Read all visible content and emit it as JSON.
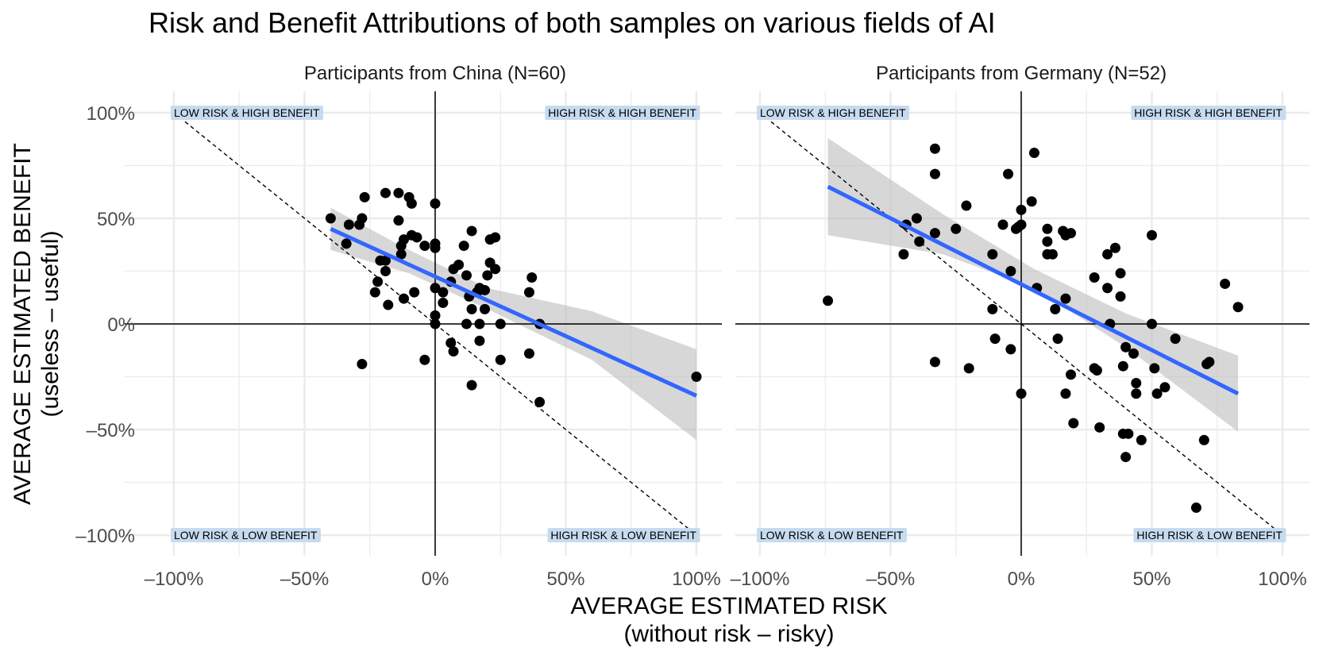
{
  "chart_data": {
    "type": "scatter",
    "title": "Risk and Benefit Attributions of both samples on various fields of AI",
    "xlabel": "AVERAGE ESTIMATED RISK",
    "xlabel_sub": "(without risk – risky)",
    "ylabel": "AVERAGE ESTIMATED BENEFIT",
    "ylabel_sub": "(useless – useful)",
    "xlim": [
      -1.1,
      1.1
    ],
    "ylim": [
      -1.1,
      1.1
    ],
    "x_ticks": [
      -1,
      -0.5,
      0,
      0.5,
      1
    ],
    "x_tick_labels": [
      "–100%",
      "–50%",
      "0%",
      "50%",
      "100%"
    ],
    "y_ticks": [
      1,
      0.5,
      0,
      -0.5,
      -1
    ],
    "y_tick_labels": [
      "100%",
      "50%",
      "0%",
      "–50%",
      "–100%"
    ],
    "grid": true,
    "colors": {
      "points": "#000000",
      "fit_line": "#3366ff",
      "ribbon": "#bdbdbd",
      "label_fill": "#c6dbef",
      "grid": "#ebebeb"
    },
    "quadrant_labels": {
      "top_left": "LOW RISK & HIGH BENEFIT",
      "top_right": "HIGH RISK & HIGH BENEFIT",
      "bottom_left": "LOW RISK & LOW BENEFIT",
      "bottom_right": "HIGH RISK & LOW BENEFIT"
    },
    "panels": [
      {
        "name": "Participants from China (N=60)",
        "points": [
          [
            -0.4,
            0.5
          ],
          [
            -0.33,
            0.47
          ],
          [
            -0.29,
            0.47
          ],
          [
            -0.28,
            0.5
          ],
          [
            -0.34,
            0.38
          ],
          [
            -0.28,
            -0.19
          ],
          [
            -0.27,
            0.6
          ],
          [
            -0.23,
            0.15
          ],
          [
            -0.22,
            0.2
          ],
          [
            -0.21,
            0.3
          ],
          [
            -0.19,
            0.3
          ],
          [
            -0.19,
            0.25
          ],
          [
            -0.18,
            0.09
          ],
          [
            -0.19,
            0.62
          ],
          [
            -0.14,
            0.62
          ],
          [
            -0.14,
            0.49
          ],
          [
            -0.13,
            0.37
          ],
          [
            -0.13,
            0.33
          ],
          [
            -0.12,
            0.4
          ],
          [
            -0.12,
            0.12
          ],
          [
            -0.1,
            0.6
          ],
          [
            -0.09,
            0.57
          ],
          [
            -0.09,
            0.42
          ],
          [
            -0.07,
            0.41
          ],
          [
            -0.08,
            0.15
          ],
          [
            -0.04,
            0.37
          ],
          [
            -0.04,
            -0.17
          ],
          [
            0,
            0.57
          ],
          [
            0,
            0.38
          ],
          [
            0,
            0.36
          ],
          [
            0,
            0.17
          ],
          [
            0,
            0.04
          ],
          [
            0,
            0
          ],
          [
            0.03,
            0.15
          ],
          [
            0.03,
            0.1
          ],
          [
            0.06,
            0.2
          ],
          [
            0.07,
            0.26
          ],
          [
            0.09,
            0.28
          ],
          [
            0.06,
            -0.09
          ],
          [
            0.07,
            -0.13
          ],
          [
            0.11,
            0.37
          ],
          [
            0.12,
            0.23
          ],
          [
            0.12,
            0
          ],
          [
            0.13,
            0.13
          ],
          [
            0.14,
            0.44
          ],
          [
            0.14,
            0.07
          ],
          [
            0.14,
            -0.29
          ],
          [
            0.16,
            0.15
          ],
          [
            0.17,
            0.17
          ],
          [
            0.17,
            0
          ],
          [
            0.17,
            -0.08
          ],
          [
            0.19,
            0.07
          ],
          [
            0.19,
            0.16
          ],
          [
            0.2,
            0.23
          ],
          [
            0.21,
            0.29
          ],
          [
            0.21,
            0.4
          ],
          [
            0.23,
            0.41
          ],
          [
            0.23,
            0.26
          ],
          [
            0.25,
            0
          ],
          [
            0.25,
            -0.17
          ],
          [
            0.36,
            0.15
          ],
          [
            0.37,
            0.22
          ],
          [
            0.36,
            -0.14
          ],
          [
            0.4,
            0
          ],
          [
            0.4,
            -0.37
          ],
          [
            1,
            -0.25
          ]
        ],
        "fit": {
          "x": [
            -0.4,
            1.0
          ],
          "y": [
            0.45,
            -0.34
          ]
        },
        "ribbon": {
          "x": [
            -0.4,
            -0.1,
            0.2,
            0.6,
            1.0
          ],
          "upper": [
            0.55,
            0.35,
            0.17,
            0.06,
            -0.12
          ],
          "lower": [
            0.35,
            0.24,
            0.07,
            -0.17,
            -0.55
          ]
        }
      },
      {
        "name": "Participants from Germany (N=52)",
        "points": [
          [
            -0.74,
            0.11
          ],
          [
            -0.45,
            0.33
          ],
          [
            -0.44,
            0.47
          ],
          [
            -0.4,
            0.5
          ],
          [
            -0.39,
            0.39
          ],
          [
            -0.33,
            0.83
          ],
          [
            -0.33,
            0.71
          ],
          [
            -0.33,
            0.43
          ],
          [
            -0.33,
            -0.18
          ],
          [
            -0.25,
            0.45
          ],
          [
            -0.21,
            0.56
          ],
          [
            -0.2,
            -0.21
          ],
          [
            -0.11,
            0.33
          ],
          [
            -0.11,
            0.07
          ],
          [
            -0.1,
            -0.07
          ],
          [
            -0.07,
            0.47
          ],
          [
            -0.05,
            0.71
          ],
          [
            -0.04,
            0.25
          ],
          [
            -0.04,
            -0.12
          ],
          [
            -0.02,
            0.45
          ],
          [
            -0.01,
            0.46
          ],
          [
            0,
            0.54
          ],
          [
            0,
            0.47
          ],
          [
            0,
            -0.33
          ],
          [
            0.04,
            0.58
          ],
          [
            0.05,
            0.81
          ],
          [
            0.06,
            0.17
          ],
          [
            0.1,
            0.33
          ],
          [
            0.1,
            0.45
          ],
          [
            0.12,
            0.33
          ],
          [
            0.1,
            0.39
          ],
          [
            0.13,
            0.07
          ],
          [
            0.14,
            -0.07
          ],
          [
            0.16,
            0.44
          ],
          [
            0.17,
            0.42
          ],
          [
            0.17,
            0.12
          ],
          [
            0.17,
            -0.33
          ],
          [
            0.19,
            0.43
          ],
          [
            0.19,
            -0.24
          ],
          [
            0.2,
            -0.47
          ],
          [
            0.28,
            0.22
          ],
          [
            0.28,
            -0.21
          ],
          [
            0.29,
            -0.22
          ],
          [
            0.3,
            -0.49
          ],
          [
            0.33,
            0.33
          ],
          [
            0.33,
            0.17
          ],
          [
            0.34,
            0
          ],
          [
            0.36,
            0.36
          ],
          [
            0.38,
            0.24
          ],
          [
            0.38,
            0.13
          ],
          [
            0.39,
            -0.2
          ],
          [
            0.39,
            -0.52
          ],
          [
            0.4,
            -0.63
          ],
          [
            0.4,
            -0.11
          ],
          [
            0.41,
            -0.52
          ],
          [
            0.43,
            -0.14
          ],
          [
            0.44,
            -0.28
          ],
          [
            0.44,
            -0.33
          ],
          [
            0.46,
            -0.55
          ],
          [
            0.5,
            0.42
          ],
          [
            0.5,
            0
          ],
          [
            0.51,
            -0.21
          ],
          [
            0.52,
            -0.33
          ],
          [
            0.55,
            -0.3
          ],
          [
            0.59,
            -0.07
          ],
          [
            0.67,
            -0.87
          ],
          [
            0.7,
            -0.55
          ],
          [
            0.71,
            -0.19
          ],
          [
            0.72,
            -0.18
          ],
          [
            0.78,
            0.19
          ],
          [
            0.83,
            0.08
          ]
        ],
        "fit": {
          "x": [
            -0.74,
            0.83
          ],
          "y": [
            0.65,
            -0.33
          ]
        },
        "ribbon": {
          "x": [
            -0.74,
            -0.3,
            0.05,
            0.4,
            0.83
          ],
          "upper": [
            0.88,
            0.52,
            0.26,
            0.05,
            -0.15
          ],
          "lower": [
            0.42,
            0.33,
            0.17,
            -0.11,
            -0.51
          ]
        }
      }
    ]
  }
}
